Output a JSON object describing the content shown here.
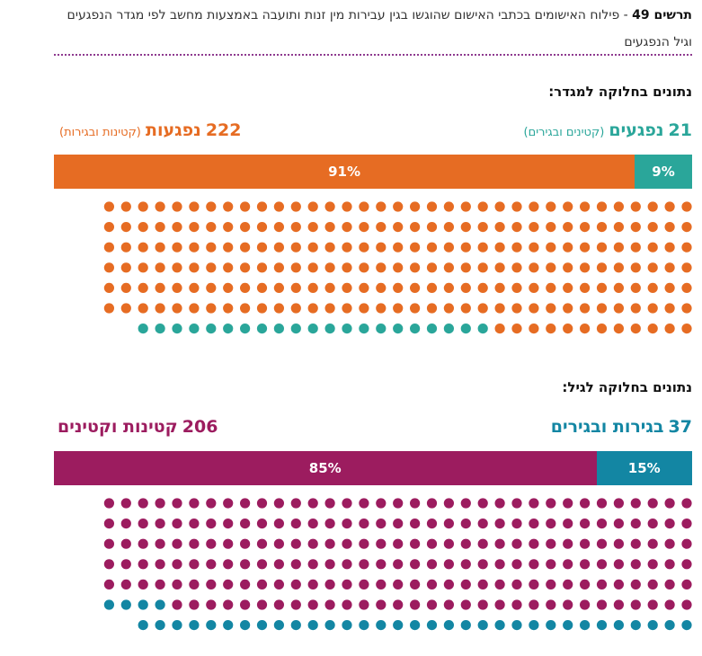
{
  "header": {
    "figure_label": "תרשים 49",
    "title_text": " - פילוח האישומים בכתבי האישום שהוגשו בגין עבירות מין זנות ותועבה באמצעות מחשב לפי מגדר הנפגעים וגיל הנפגעים"
  },
  "colors": {
    "gender_female": "#e66c23",
    "gender_male": "#2aa69a",
    "age_minors": "#9c1c5f",
    "age_adults": "#1386a3",
    "divider": "#8e3a8f"
  },
  "gender": {
    "heading": "נתונים בחלוקה למגדר:",
    "male": {
      "count": "21",
      "word": "נפגעים",
      "sub": "(קטינים ובגירים)",
      "pct": "9%"
    },
    "female": {
      "count": "222",
      "word": "נפגעות",
      "sub": "(קטינות ובגירות)",
      "pct": "91%"
    }
  },
  "age": {
    "heading": "נתונים בחלוקה לגיל:",
    "adults": {
      "count": "37",
      "word": "בגירות ובגירים",
      "pct": "15%"
    },
    "minors": {
      "count": "206",
      "word": "קטינות וקטינים",
      "pct": "85%"
    }
  },
  "chart_data": [
    {
      "type": "bar",
      "title": "נתונים בחלוקה למגדר:",
      "categories": [
        "נפגעים (קטינים ובגירים)",
        "נפגעות (קטינות ובגירות)"
      ],
      "values": [
        21,
        222
      ],
      "percent": [
        9,
        91
      ]
    },
    {
      "type": "bar",
      "title": "נתונים בחלוקה לגיל:",
      "categories": [
        "בגירות ובגירים",
        "קטינות וקטינים"
      ],
      "values": [
        37,
        206
      ],
      "percent": [
        15,
        85
      ]
    }
  ]
}
